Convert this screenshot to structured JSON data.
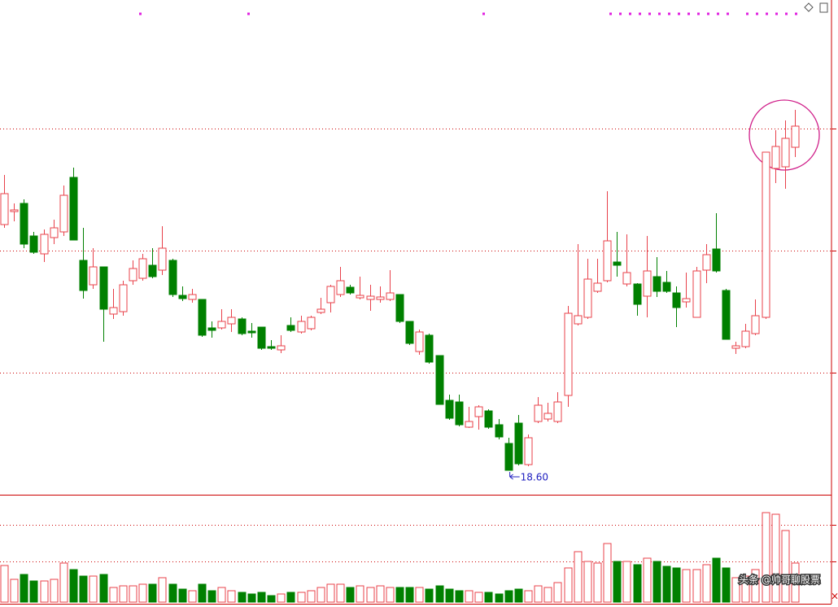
{
  "chart_data": [
    {
      "type": "candlestick",
      "open": [
        24.64,
        24.96,
        25.16,
        24.36,
        23.92,
        24.32,
        24.46,
        25.8,
        23.76,
        23.16,
        23.6,
        22.44,
        22.5,
        23.26,
        23.32,
        23.64,
        23.52,
        23.76,
        22.9,
        22.8,
        22.8,
        22.1,
        22.1,
        22.2,
        22.32,
        22.02,
        22.12,
        21.64,
        21.56,
        22.16,
        22.0,
        22.08,
        22.48,
        22.72,
        22.92,
        23.1,
        22.84,
        22.8,
        22.8,
        22.8,
        22.92,
        22.26,
        21.52,
        21.92,
        21.42,
        20.32,
        20.28,
        19.66,
        19.92,
        20.06,
        19.72,
        19.26,
        19.76,
        18.74,
        19.8,
        19.86,
        19.8,
        20.44,
        22.2,
        22.36,
        23.0,
        23.26,
        23.72,
        23.18,
        23.18,
        22.88,
        23.36,
        23.22,
        22.96,
        22.74,
        22.36,
        23.52,
        24.04,
        23.02,
        21.6,
        21.64,
        21.96,
        22.36,
        26.02,
        26.06,
        26.54
      ],
      "high": [
        25.86,
        25.16,
        25.26,
        24.46,
        24.52,
        24.76,
        25.6,
        26.04,
        24.56,
        24.06,
        23.6,
        23.06,
        23.26,
        23.76,
        23.92,
        24.06,
        24.6,
        23.8,
        23.12,
        23.06,
        22.8,
        22.26,
        22.56,
        22.56,
        22.36,
        22.22,
        22.12,
        21.8,
        21.92,
        22.36,
        22.4,
        22.4,
        22.84,
        23.16,
        23.6,
        23.16,
        23.36,
        23.16,
        23.12,
        23.52,
        22.92,
        22.26,
        22.06,
        21.96,
        21.42,
        20.46,
        20.46,
        20.16,
        20.2,
        20.1,
        19.86,
        19.4,
        19.96,
        19.48,
        20.4,
        20.26,
        20.52,
        22.64,
        24.16,
        23.8,
        23.8,
        25.46,
        24.46,
        24.4,
        23.2,
        24.36,
        23.84,
        23.5,
        23.12,
        23.46,
        23.6,
        24.16,
        24.92,
        23.06,
        21.76,
        22.2,
        22.8,
        26.42,
        26.96,
        27.2,
        27.46
      ],
      "low": [
        24.56,
        24.72,
        24.06,
        23.92,
        23.72,
        24.16,
        24.36,
        24.26,
        22.82,
        23.06,
        21.76,
        22.32,
        22.4,
        23.16,
        23.26,
        23.32,
        23.4,
        22.86,
        22.76,
        22.72,
        21.88,
        21.86,
        22.06,
        22.0,
        21.92,
        21.86,
        21.56,
        21.56,
        21.48,
        22.0,
        21.96,
        22.04,
        22.44,
        22.48,
        22.86,
        22.92,
        22.8,
        22.52,
        22.72,
        22.76,
        22.22,
        21.68,
        21.44,
        21.22,
        20.22,
        19.84,
        19.68,
        19.64,
        19.6,
        19.62,
        19.36,
        18.6,
        18.72,
        18.7,
        19.76,
        19.8,
        19.76,
        20.16,
        22.16,
        22.32,
        22.96,
        23.22,
        23.36,
        23.12,
        22.4,
        22.36,
        22.86,
        22.96,
        22.12,
        22.6,
        22.36,
        23.2,
        23.46,
        21.82,
        21.46,
        21.6,
        21.92,
        22.32,
        25.66,
        25.52,
        26.3
      ],
      "close": [
        25.4,
        25.0,
        24.16,
        23.96,
        24.4,
        24.56,
        25.36,
        24.26,
        23.02,
        23.6,
        22.56,
        22.6,
        23.16,
        23.56,
        23.8,
        23.36,
        24.06,
        22.92,
        22.82,
        22.92,
        21.92,
        22.04,
        22.26,
        22.36,
        21.96,
        21.98,
        21.6,
        21.6,
        21.66,
        22.04,
        22.26,
        22.36,
        22.56,
        23.12,
        23.26,
        22.96,
        22.9,
        22.88,
        22.86,
        22.96,
        22.26,
        21.72,
        22.0,
        21.26,
        20.22,
        19.88,
        19.72,
        19.8,
        20.16,
        19.66,
        19.42,
        18.6,
        18.76,
        19.4,
        20.2,
        20.0,
        20.28,
        22.46,
        22.4,
        23.3,
        23.2,
        24.24,
        23.64,
        23.46,
        22.68,
        23.5,
        23.0,
        23.0,
        22.6,
        22.82,
        23.5,
        23.9,
        23.5,
        21.82,
        21.66,
        22.02,
        22.4,
        26.42,
        26.56,
        26.76,
        27.06
      ],
      "ylim": [
        18,
        30.16
      ],
      "ygrid": [
        21,
        24,
        27
      ],
      "up_color": "#e8404a",
      "down_color": "#008000",
      "annotations": [
        {
          "value": 18.6,
          "label": "18.60",
          "color": "#2020c0"
        }
      ]
    },
    {
      "type": "volume",
      "values": [
        4.5,
        2.8,
        3.4,
        2.6,
        2.6,
        2.8,
        4.8,
        4.0,
        3.2,
        3.2,
        3.4,
        1.8,
        2.0,
        2.0,
        2.2,
        2.2,
        3.0,
        2.2,
        1.6,
        1.4,
        2.2,
        1.4,
        1.8,
        1.4,
        1.2,
        1.0,
        1.2,
        0.8,
        1.0,
        1.2,
        1.2,
        1.4,
        1.8,
        2.2,
        2.2,
        1.8,
        2.0,
        1.8,
        2.0,
        1.8,
        1.8,
        1.8,
        1.8,
        1.6,
        2.0,
        1.6,
        1.4,
        1.4,
        1.2,
        1.2,
        1.0,
        1.4,
        1.6,
        1.4,
        2.0,
        1.8,
        2.4,
        4.2,
        6.2,
        5.0,
        4.8,
        7.2,
        5.0,
        5.0,
        4.6,
        5.4,
        5.0,
        4.4,
        4.2,
        4.0,
        4.0,
        4.6,
        5.4,
        4.2,
        3.0,
        3.2,
        4.0,
        11.0,
        10.8,
        8.8,
        4.8
      ],
      "ylim": [
        0,
        13
      ],
      "ygrid": [
        5,
        9.5
      ],
      "watermark": "头条 @帅哥聊股票"
    }
  ]
}
